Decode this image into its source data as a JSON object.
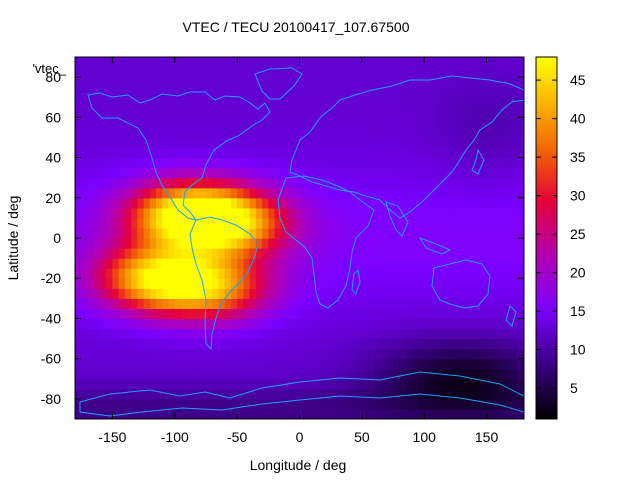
{
  "chart_data": {
    "type": "heatmap",
    "title": "VTEC / TECU 20100417_107.67500",
    "xlabel": "Longitude / deg",
    "ylabel": "Latitude / deg",
    "xlim": [
      -180,
      180
    ],
    "ylim": [
      -90,
      90
    ],
    "x_ticks": [
      -150,
      -100,
      -50,
      0,
      50,
      100,
      150
    ],
    "y_ticks": [
      -80,
      -60,
      -40,
      -20,
      0,
      20,
      40,
      60,
      80
    ],
    "legend_label": "'vtec_",
    "colorbar": {
      "range": [
        1,
        48
      ],
      "ticks": [
        5,
        10,
        15,
        20,
        25,
        30,
        35,
        40,
        45
      ],
      "colormap": [
        "#000000",
        "#3a0082",
        "#7a00ff",
        "#b300b3",
        "#e6003a",
        "#f26a00",
        "#fbb800",
        "#ffff00"
      ]
    },
    "continent_color": "#1f9fff",
    "features": {
      "background_level_tecu": 12,
      "night_minimum": {
        "lon": 130,
        "lat": -68,
        "value": 3
      },
      "equatorial_anomaly_peaks": [
        {
          "lon": -90,
          "lat": 12,
          "value": 47
        },
        {
          "lon": -115,
          "lat": -20,
          "value": 46
        },
        {
          "lon": -55,
          "lat": 8,
          "value": 41
        },
        {
          "lon": -70,
          "lat": -25,
          "value": 40
        }
      ]
    }
  }
}
